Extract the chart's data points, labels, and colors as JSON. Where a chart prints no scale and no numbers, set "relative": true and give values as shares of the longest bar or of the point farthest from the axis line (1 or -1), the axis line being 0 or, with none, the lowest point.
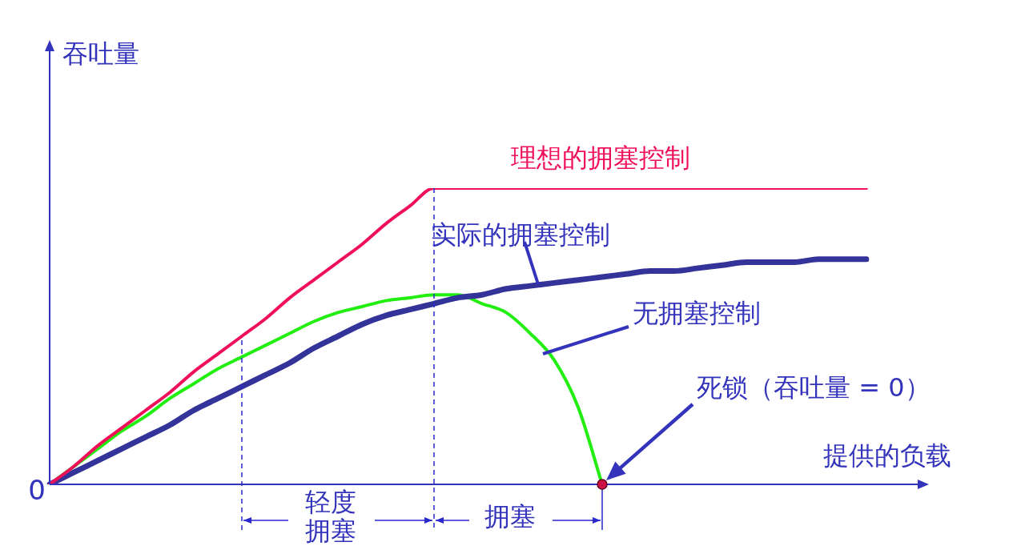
{
  "chart_data": {
    "type": "line",
    "relative": true,
    "legend": false,
    "xlabel": "提供的负载",
    "ylabel": "吞吐量",
    "categories": [
      null,
      null,
      null,
      null,
      null,
      null,
      null,
      null,
      null,
      null,
      null,
      null,
      null,
      null,
      null,
      null,
      null,
      null,
      null,
      null,
      null,
      null,
      null,
      null,
      null,
      null,
      null,
      null,
      null,
      null,
      null,
      null,
      null,
      null,
      null
    ],
    "series": [
      {
        "name": "理想的拥塞控制",
        "color": "#f0105a",
        "values": [
          0,
          0.06,
          0.13,
          0.19,
          0.25,
          0.31,
          0.38,
          0.44,
          0.5,
          0.56,
          0.63,
          0.69,
          0.75,
          0.81,
          0.88,
          0.94,
          1,
          1,
          1,
          1,
          1,
          1,
          1,
          1,
          1,
          1,
          1,
          1,
          1,
          1,
          1,
          1,
          1,
          1,
          1
        ]
      },
      {
        "name": "实际的拥塞控制",
        "color": "#33339a",
        "values": [
          0,
          0.04,
          0.08,
          0.12,
          0.16,
          0.2,
          0.25,
          0.29,
          0.33,
          0.37,
          0.41,
          0.46,
          0.5,
          0.54,
          0.57,
          0.59,
          0.61,
          0.63,
          0.64,
          0.66,
          0.67,
          0.68,
          0.69,
          0.7,
          0.71,
          0.72,
          0.72,
          0.73,
          0.74,
          0.75,
          0.75,
          0.75,
          0.76,
          0.76,
          0.76
        ]
      },
      {
        "name": "无拥塞控制",
        "color": "#22ee11",
        "values": [
          0,
          0.06,
          0.12,
          0.18,
          0.23,
          0.29,
          0.34,
          0.39,
          0.43,
          0.47,
          0.51,
          0.55,
          0.58,
          0.6,
          0.62,
          0.63,
          0.64,
          0.64,
          0.61,
          0.58,
          0.51,
          0.42,
          0.26,
          0,
          null,
          null,
          null,
          null,
          null,
          null,
          null,
          null,
          null,
          null,
          null
        ]
      }
    ],
    "annotations": [
      "0",
      "死锁（吞吐量 = 0）",
      "轻度",
      "拥塞",
      "拥塞"
    ]
  }
}
